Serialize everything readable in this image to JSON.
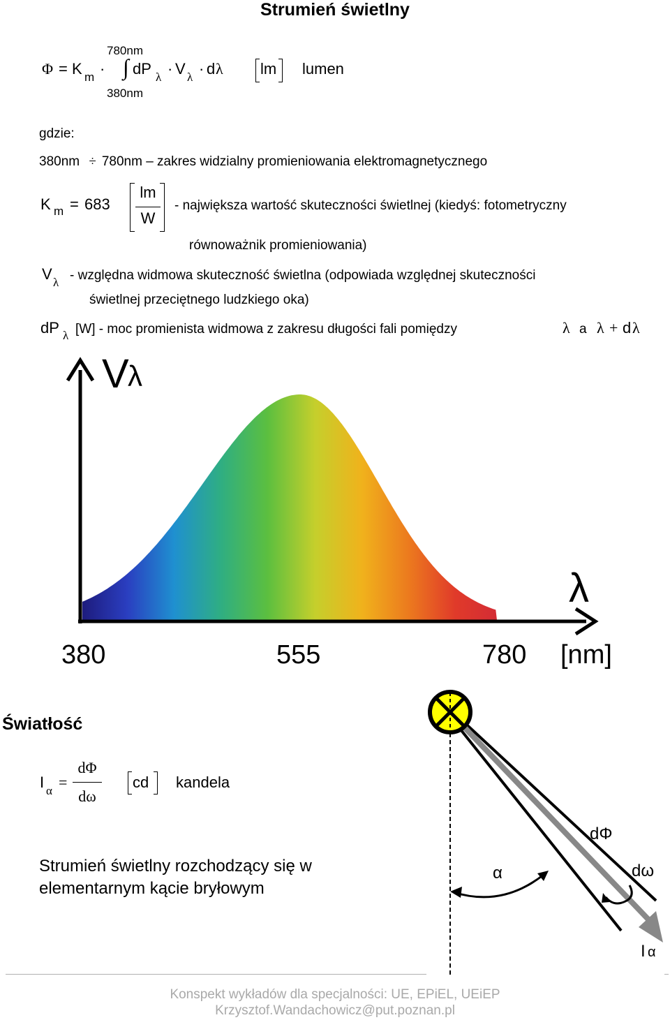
{
  "title": "Strumień świetlny",
  "formula1": {
    "phi": "Φ",
    "eq": "=",
    "K": "K",
    "m": "m",
    "dot": "·",
    "upper": "780nm",
    "lower": "380nm",
    "integral": "∫",
    "dP": "dP",
    "lambda": "λ",
    "V": "V",
    "d": "d",
    "unit": "lm",
    "unit_name": "lumen"
  },
  "where": "gdzie:",
  "range_line": {
    "from": "380nm",
    "div": "÷",
    "rest": "780nm – zakres widzialny promieniowania elektromagnetycznego"
  },
  "km_line": {
    "K": "K",
    "m": "m",
    "eq": "=",
    "val": "683",
    "num": "lm",
    "den": "W",
    "desc": "- największa wartość skuteczności świetlnej (kiedyś: fotometryczny",
    "desc2": "równoważnik promieniowania)"
  },
  "v_line": {
    "V": "V",
    "lambda": "λ",
    "desc": "- względna widmowa skuteczność świetlna (odpowiada względnej skuteczności",
    "desc2": "świetlnej przeciętnego ludzkiego oka)"
  },
  "dp_line": {
    "dP": "dP",
    "lambda": "λ",
    "desc": "[W] - moc promienista widmowa z zakresu długości fali pomiędzy",
    "a": "a",
    "plus": "+",
    "d": "d"
  },
  "chart_data": {
    "type": "area",
    "ylabel": "Vλ",
    "xlabel": "λ",
    "x_ticks": [
      "380",
      "555",
      "780"
    ],
    "x_unit": "[nm]",
    "x": [
      380,
      555,
      780
    ],
    "peak": 555,
    "colors": [
      "#1d1a7a",
      "#2a3ec0",
      "#1f90d0",
      "#2fae82",
      "#5cbf3f",
      "#c5cf2c",
      "#f0b21c",
      "#ec7a1e",
      "#e03a2a",
      "#d22a36"
    ]
  },
  "section2": {
    "title": "Światłość",
    "I": "I",
    "alpha": "α",
    "eq": "=",
    "num": "dΦ",
    "den": "dω",
    "unit": "cd",
    "unit_name": "kandela",
    "desc1": "Strumień świetlny rozchodzący się w",
    "desc2": "elementarnym kącie bryłowym"
  },
  "diagram": {
    "dPhi": "dΦ",
    "domega": "dω",
    "alpha": "α",
    "I": "I",
    "Ialpha": "α"
  },
  "footer": {
    "line1": "Konspekt wykładów dla specjalności: UE, EPiEL, UEiEP",
    "line2": "Krzysztof.Wandachowicz@put.poznan.pl"
  }
}
